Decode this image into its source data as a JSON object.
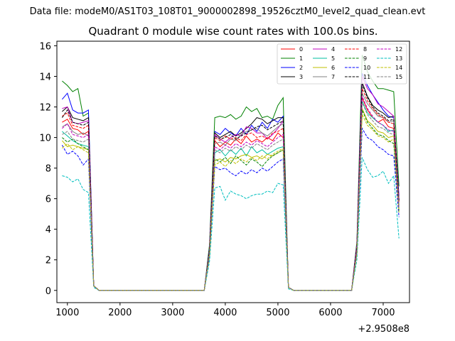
{
  "chart_data": {
    "type": "line",
    "suptitle": "Data file: modeM0/AS1T03_108T01_9000002898_19526cztM0_level2_quad_clean.evt",
    "title": "Quadrant 0 module wise count rates with 100.0s bins.",
    "xlabel": "",
    "ylabel": "",
    "x_offset_label": "+2.9508e8",
    "xlim": [
      800,
      7500
    ],
    "ylim": [
      -0.8,
      16.3
    ],
    "xticks": [
      1000,
      2000,
      3000,
      4000,
      5000,
      6000,
      7000
    ],
    "yticks": [
      0,
      2,
      4,
      6,
      8,
      10,
      12,
      14,
      16
    ],
    "legend_position": "top-right",
    "x": [
      900,
      1000,
      1100,
      1200,
      1300,
      1400,
      1500,
      1600,
      1700,
      1800,
      1900,
      2000,
      2100,
      2200,
      2300,
      2400,
      2500,
      2600,
      2700,
      2800,
      2900,
      3000,
      3100,
      3200,
      3300,
      3400,
      3500,
      3600,
      3700,
      3800,
      3900,
      4000,
      4100,
      4200,
      4300,
      4400,
      4500,
      4600,
      4700,
      4800,
      4900,
      5000,
      5100,
      5200,
      5300,
      5400,
      5500,
      5600,
      5700,
      5800,
      5900,
      6000,
      6100,
      6200,
      6300,
      6400,
      6500,
      6600,
      6700,
      6800,
      6900,
      7000,
      7100,
      7200,
      7300
    ],
    "series": [
      {
        "name": "0",
        "color": "#ff0000",
        "dash": "solid",
        "values": [
          11.0,
          11.2,
          10.6,
          10.5,
          10.2,
          10.4,
          0.3,
          0,
          0,
          0,
          0,
          0,
          0,
          0,
          0,
          0,
          0,
          0,
          0,
          0,
          0,
          0,
          0,
          0,
          0,
          0,
          0,
          0,
          2.6,
          9.8,
          9.4,
          9.7,
          9.5,
          9.9,
          9.6,
          10.1,
          9.7,
          9.9,
          9.7,
          10.0,
          9.8,
          10.3,
          10.0,
          0.2,
          0,
          0,
          0,
          0,
          0,
          0,
          0,
          0,
          0,
          0,
          0,
          0,
          2.6,
          12.6,
          11.8,
          11.3,
          11.0,
          11.2,
          10.7,
          10.6,
          5.9
        ]
      },
      {
        "name": "1",
        "color": "#008000",
        "dash": "solid",
        "values": [
          13.7,
          13.4,
          13.0,
          13.2,
          11.4,
          11.6,
          0.3,
          0,
          0,
          0,
          0,
          0,
          0,
          0,
          0,
          0,
          0,
          0,
          0,
          0,
          0,
          0,
          0,
          0,
          0,
          0,
          0,
          0,
          3.0,
          11.3,
          11.4,
          11.3,
          11.5,
          11.2,
          11.4,
          12.0,
          11.7,
          11.9,
          11.3,
          11.4,
          11.2,
          12.1,
          12.6,
          0.2,
          0,
          0,
          0,
          0,
          0,
          0,
          0,
          0,
          0,
          0,
          0,
          0,
          3.2,
          15.4,
          14.3,
          13.7,
          13.2,
          13.2,
          13.1,
          13.0,
          6.8
        ]
      },
      {
        "name": "2",
        "color": "#0000ff",
        "dash": "solid",
        "values": [
          12.5,
          12.9,
          11.8,
          11.6,
          11.6,
          11.8,
          0.3,
          0,
          0,
          0,
          0,
          0,
          0,
          0,
          0,
          0,
          0,
          0,
          0,
          0,
          0,
          0,
          0,
          0,
          0,
          0,
          0,
          0,
          2.8,
          10.4,
          10.2,
          10.6,
          10.3,
          10.1,
          10.6,
          10.2,
          10.8,
          10.4,
          11.0,
          10.6,
          11.2,
          11.0,
          11.4,
          0.2,
          0,
          0,
          0,
          0,
          0,
          0,
          0,
          0,
          0,
          0,
          0,
          0,
          3.0,
          14.2,
          13.4,
          12.8,
          12.3,
          11.8,
          11.4,
          11.3,
          6.2
        ]
      },
      {
        "name": "3",
        "color": "#000000",
        "dash": "solid",
        "values": [
          11.7,
          12.0,
          11.3,
          11.2,
          11.1,
          11.3,
          0.3,
          0,
          0,
          0,
          0,
          0,
          0,
          0,
          0,
          0,
          0,
          0,
          0,
          0,
          0,
          0,
          0,
          0,
          0,
          0,
          0,
          0,
          2.7,
          10.3,
          10.0,
          10.2,
          10.4,
          10.1,
          10.3,
          10.6,
          10.9,
          11.3,
          11.2,
          10.9,
          11.1,
          11.3,
          11.3,
          0.2,
          0,
          0,
          0,
          0,
          0,
          0,
          0,
          0,
          0,
          0,
          0,
          0,
          2.9,
          13.6,
          12.7,
          12.1,
          11.8,
          11.6,
          11.3,
          11.4,
          5.9
        ]
      },
      {
        "name": "4",
        "color": "#bf00bf",
        "dash": "solid",
        "values": [
          11.9,
          12.0,
          11.0,
          10.9,
          11.0,
          11.1,
          0.3,
          0,
          0,
          0,
          0,
          0,
          0,
          0,
          0,
          0,
          0,
          0,
          0,
          0,
          0,
          0,
          0,
          0,
          0,
          0,
          0,
          0,
          2.7,
          10.2,
          9.9,
          9.7,
          10.0,
          10.2,
          10.1,
          10.7,
          10.6,
          10.3,
          10.3,
          9.9,
          10.2,
          10.6,
          11.1,
          0.2,
          0,
          0,
          0,
          0,
          0,
          0,
          0,
          0,
          0,
          0,
          0,
          0,
          3.0,
          14.0,
          13.2,
          12.8,
          12.2,
          12.0,
          11.7,
          11.4,
          6.0
        ]
      },
      {
        "name": "5",
        "color": "#00bfa0",
        "dash": "solid",
        "values": [
          10.4,
          10.1,
          9.8,
          9.6,
          9.5,
          9.4,
          0.3,
          0,
          0,
          0,
          0,
          0,
          0,
          0,
          0,
          0,
          0,
          0,
          0,
          0,
          0,
          0,
          0,
          0,
          0,
          0,
          0,
          0,
          2.4,
          9.0,
          9.2,
          8.8,
          9.2,
          8.9,
          9.3,
          8.8,
          9.4,
          9.0,
          9.2,
          8.9,
          9.1,
          9.3,
          9.4,
          0.2,
          0,
          0,
          0,
          0,
          0,
          0,
          0,
          0,
          0,
          0,
          0,
          0,
          2.6,
          12.4,
          11.6,
          11.3,
          11.0,
          10.8,
          10.4,
          10.5,
          5.6
        ]
      },
      {
        "name": "6",
        "color": "#bfbf00",
        "dash": "solid",
        "values": [
          9.8,
          9.4,
          9.5,
          9.4,
          9.3,
          9.2,
          0.3,
          0,
          0,
          0,
          0,
          0,
          0,
          0,
          0,
          0,
          0,
          0,
          0,
          0,
          0,
          0,
          0,
          0,
          0,
          0,
          0,
          0,
          2.3,
          8.5,
          8.6,
          8.4,
          8.7,
          8.6,
          8.8,
          8.9,
          8.7,
          8.8,
          8.6,
          8.9,
          8.8,
          9.0,
          9.2,
          0.2,
          0,
          0,
          0,
          0,
          0,
          0,
          0,
          0,
          0,
          0,
          0,
          0,
          2.5,
          11.9,
          11.1,
          10.8,
          10.4,
          10.3,
          10.0,
          10.1,
          5.3
        ]
      },
      {
        "name": "7",
        "color": "#808080",
        "dash": "solid",
        "values": [
          10.7,
          10.9,
          10.4,
          10.2,
          10.3,
          10.1,
          0.3,
          0,
          0,
          0,
          0,
          0,
          0,
          0,
          0,
          0,
          0,
          0,
          0,
          0,
          0,
          0,
          0,
          0,
          0,
          0,
          0,
          0,
          2.6,
          9.6,
          9.7,
          9.5,
          9.9,
          9.8,
          10.2,
          10.4,
          10.5,
          10.6,
          10.3,
          10.1,
          10.4,
          10.7,
          10.9,
          0.2,
          0,
          0,
          0,
          0,
          0,
          0,
          0,
          0,
          0,
          0,
          0,
          0,
          2.8,
          12.9,
          12.2,
          11.8,
          11.4,
          11.3,
          11.0,
          11.1,
          5.8
        ]
      },
      {
        "name": "8",
        "color": "#ff0000",
        "dash": "dashed",
        "values": [
          11.4,
          11.6,
          10.8,
          10.7,
          10.6,
          10.8,
          0.3,
          0,
          0,
          0,
          0,
          0,
          0,
          0,
          0,
          0,
          0,
          0,
          0,
          0,
          0,
          0,
          0,
          0,
          0,
          0,
          0,
          0,
          2.6,
          10.0,
          9.8,
          10.1,
          9.9,
          10.0,
          9.8,
          10.2,
          10.3,
          10.0,
          10.1,
          9.9,
          10.3,
          10.4,
          10.6,
          0.2,
          0,
          0,
          0,
          0,
          0,
          0,
          0,
          0,
          0,
          0,
          0,
          0,
          2.8,
          13.2,
          12.4,
          11.9,
          11.5,
          11.3,
          11.0,
          10.9,
          5.7
        ]
      },
      {
        "name": "9",
        "color": "#008000",
        "dash": "dashed",
        "values": [
          10.0,
          9.7,
          9.9,
          9.6,
          9.4,
          9.2,
          0.3,
          0,
          0,
          0,
          0,
          0,
          0,
          0,
          0,
          0,
          0,
          0,
          0,
          0,
          0,
          0,
          0,
          0,
          0,
          0,
          0,
          0,
          2.3,
          8.6,
          8.4,
          8.7,
          8.3,
          8.8,
          8.5,
          8.2,
          8.6,
          8.4,
          8.1,
          8.5,
          8.8,
          9.0,
          9.2,
          0.2,
          0,
          0,
          0,
          0,
          0,
          0,
          0,
          0,
          0,
          0,
          0,
          0,
          2.5,
          11.8,
          11.0,
          10.6,
          10.2,
          10.1,
          9.8,
          9.6,
          5.2
        ]
      },
      {
        "name": "10",
        "color": "#0000ff",
        "dash": "dashed",
        "values": [
          9.5,
          8.9,
          9.1,
          8.8,
          8.2,
          8.6,
          0.3,
          0,
          0,
          0,
          0,
          0,
          0,
          0,
          0,
          0,
          0,
          0,
          0,
          0,
          0,
          0,
          0,
          0,
          0,
          0,
          0,
          0,
          2.2,
          8.1,
          7.9,
          8.0,
          7.7,
          7.5,
          7.8,
          7.6,
          7.9,
          7.7,
          8.0,
          7.8,
          8.1,
          8.4,
          8.6,
          0.2,
          0,
          0,
          0,
          0,
          0,
          0,
          0,
          0,
          0,
          0,
          0,
          0,
          2.4,
          10.6,
          10.0,
          9.8,
          9.4,
          9.2,
          8.9,
          8.8,
          4.8
        ]
      },
      {
        "name": "11",
        "color": "#000000",
        "dash": "dashed",
        "values": [
          11.3,
          11.8,
          11.0,
          10.9,
          10.8,
          11.0,
          0.3,
          0,
          0,
          0,
          0,
          0,
          0,
          0,
          0,
          0,
          0,
          0,
          0,
          0,
          0,
          0,
          0,
          0,
          0,
          0,
          0,
          0,
          2.7,
          10.1,
          9.9,
          10.0,
          10.2,
          9.9,
          10.1,
          10.3,
          10.5,
          10.7,
          10.8,
          10.5,
          10.7,
          10.9,
          11.1,
          0.2,
          0,
          0,
          0,
          0,
          0,
          0,
          0,
          0,
          0,
          0,
          0,
          0,
          2.9,
          13.5,
          12.6,
          12.0,
          11.6,
          11.4,
          11.1,
          11.2,
          5.8
        ]
      },
      {
        "name": "12",
        "color": "#bf00bf",
        "dash": "dashed",
        "values": [
          10.6,
          10.9,
          10.2,
          10.1,
          10.0,
          10.2,
          0.3,
          0,
          0,
          0,
          0,
          0,
          0,
          0,
          0,
          0,
          0,
          0,
          0,
          0,
          0,
          0,
          0,
          0,
          0,
          0,
          0,
          0,
          2.5,
          9.4,
          9.2,
          9.5,
          9.3,
          9.6,
          9.4,
          9.7,
          9.5,
          9.8,
          9.6,
          9.4,
          9.7,
          10.0,
          10.2,
          0.2,
          0,
          0,
          0,
          0,
          0,
          0,
          0,
          0,
          0,
          0,
          0,
          0,
          2.7,
          12.7,
          11.9,
          11.4,
          11.0,
          10.8,
          10.5,
          10.4,
          5.5
        ]
      },
      {
        "name": "13",
        "color": "#00bfbf",
        "dash": "dashed",
        "values": [
          7.5,
          7.4,
          7.1,
          7.3,
          6.6,
          6.4,
          0.2,
          0,
          0,
          0,
          0,
          0,
          0,
          0,
          0,
          0,
          0,
          0,
          0,
          0,
          0,
          0,
          0,
          0,
          0,
          0,
          0,
          0,
          1.9,
          6.7,
          6.8,
          5.9,
          6.5,
          6.3,
          6.2,
          6.0,
          6.2,
          6.3,
          6.3,
          6.5,
          6.4,
          7.0,
          6.9,
          0.1,
          0,
          0,
          0,
          0,
          0,
          0,
          0,
          0,
          0,
          0,
          0,
          0,
          2.0,
          8.7,
          7.9,
          7.4,
          7.5,
          7.8,
          7.0,
          7.5,
          3.4
        ]
      },
      {
        "name": "14",
        "color": "#bfbf00",
        "dash": "dashed",
        "values": [
          9.3,
          9.6,
          9.2,
          9.4,
          9.2,
          9.0,
          0.3,
          0,
          0,
          0,
          0,
          0,
          0,
          0,
          0,
          0,
          0,
          0,
          0,
          0,
          0,
          0,
          0,
          0,
          0,
          0,
          0,
          0,
          2.3,
          8.2,
          8.4,
          8.1,
          8.5,
          8.3,
          8.6,
          8.4,
          8.7,
          8.5,
          8.8,
          8.6,
          8.9,
          9.1,
          9.3,
          0.2,
          0,
          0,
          0,
          0,
          0,
          0,
          0,
          0,
          0,
          0,
          0,
          0,
          2.4,
          11.5,
          10.8,
          10.5,
          10.1,
          10.0,
          9.7,
          9.9,
          5.1
        ]
      },
      {
        "name": "15",
        "color": "#808080",
        "dash": "dashed",
        "values": [
          10.2,
          10.4,
          9.9,
          9.8,
          9.7,
          9.9,
          0.3,
          0,
          0,
          0,
          0,
          0,
          0,
          0,
          0,
          0,
          0,
          0,
          0,
          0,
          0,
          0,
          0,
          0,
          0,
          0,
          0,
          0,
          2.5,
          9.2,
          9.0,
          9.3,
          9.1,
          9.4,
          9.2,
          9.5,
          9.3,
          9.6,
          9.4,
          9.2,
          9.5,
          9.7,
          9.9,
          0.2,
          0,
          0,
          0,
          0,
          0,
          0,
          0,
          0,
          0,
          0,
          0,
          0,
          2.6,
          12.3,
          11.5,
          11.1,
          10.7,
          10.6,
          10.3,
          10.2,
          5.4
        ]
      }
    ]
  }
}
